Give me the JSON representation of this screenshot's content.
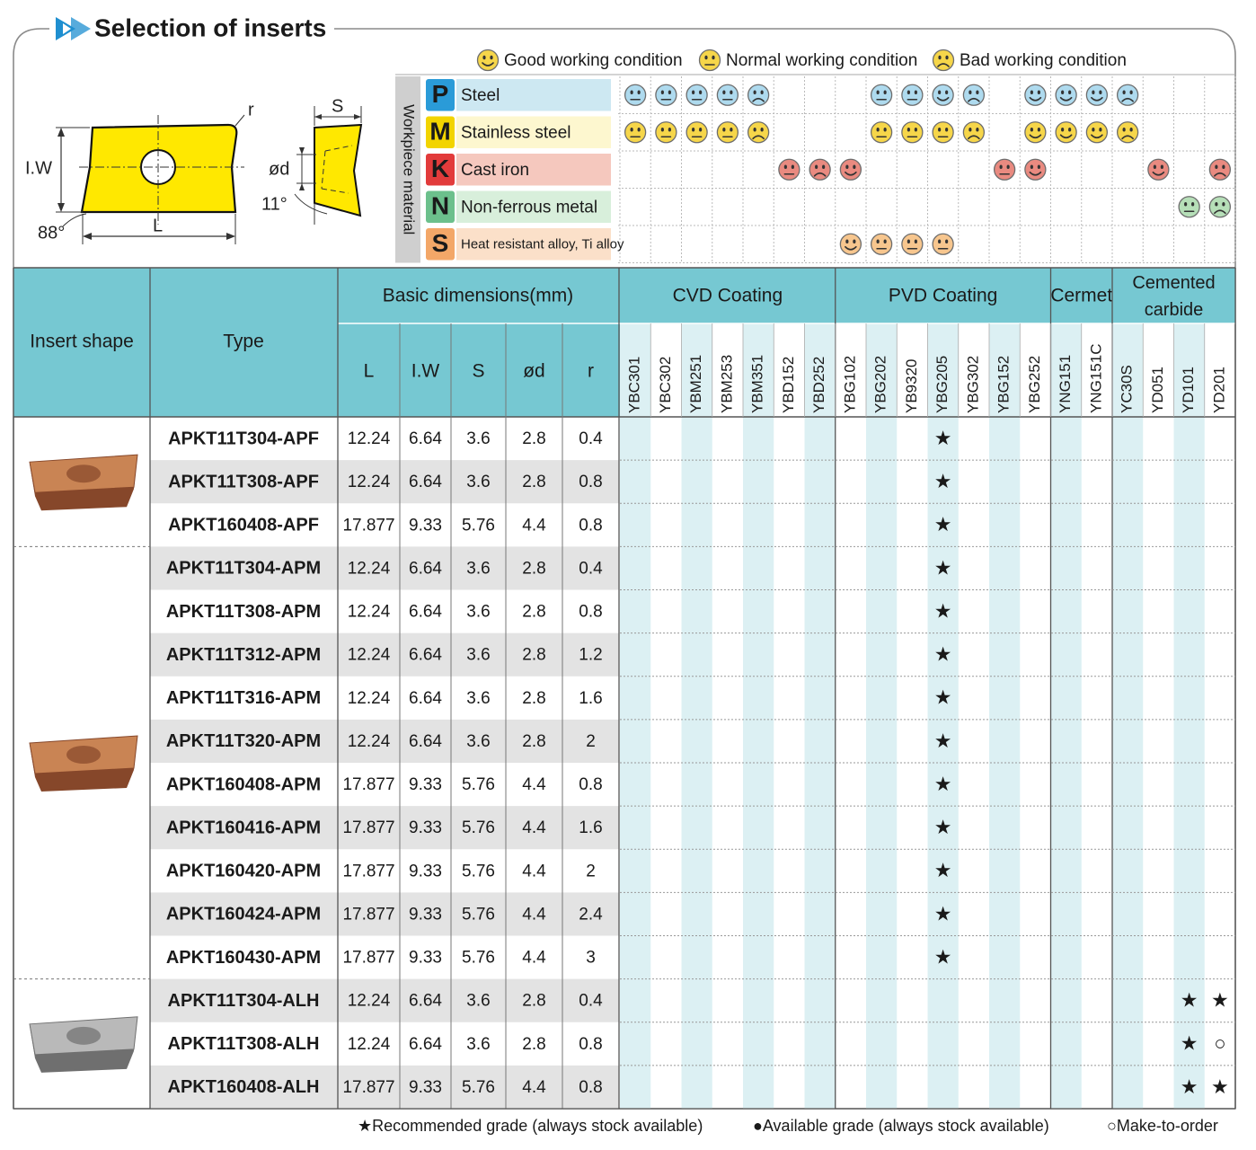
{
  "title": "Selection of inserts",
  "diagram": {
    "r": "r",
    "iw": "I.W",
    "l": "L",
    "angle_bottom": "88°",
    "s": "S",
    "d": "ød",
    "angle_side": "11°"
  },
  "conditions": [
    {
      "mood": "good",
      "label": "Good working condition"
    },
    {
      "mood": "normal",
      "label": "Normal working condition"
    },
    {
      "mood": "bad",
      "label": "Bad working condition"
    }
  ],
  "materials": {
    "label": "Workpiece material",
    "rows": [
      {
        "letter": "P",
        "name": "Steel",
        "color": "#2a9bd8",
        "letter_color": "#ffffff",
        "background": "#cde8f2",
        "face_color": "#aedaee",
        "conditions": [
          "normal",
          "normal",
          "normal",
          "normal",
          "bad",
          null,
          null,
          null,
          "normal",
          "normal",
          "good",
          "bad",
          null,
          "good",
          "good",
          "good",
          "bad",
          null,
          null,
          null
        ]
      },
      {
        "letter": "M",
        "name": "Stainless steel",
        "color": "#f2d400",
        "letter_color": "#111111",
        "background": "#fdf7cf",
        "face_color": "#f6d64a",
        "conditions": [
          "normal",
          "normal",
          "normal",
          "normal",
          "bad",
          null,
          null,
          null,
          "normal",
          "normal",
          "normal",
          "bad",
          null,
          "good",
          "good",
          "good",
          "bad",
          null,
          null,
          null
        ]
      },
      {
        "letter": "K",
        "name": "Cast iron",
        "color": "#e23b3b",
        "letter_color": "#ffffff",
        "background": "#f5c8be",
        "face_color": "#e98a80",
        "conditions": [
          null,
          null,
          null,
          null,
          null,
          "normal",
          "bad",
          "good",
          null,
          null,
          null,
          null,
          "normal",
          "good",
          null,
          null,
          null,
          "good",
          null,
          "bad"
        ]
      },
      {
        "letter": "N",
        "name": "Non-ferrous metal",
        "color": "#6cc08c",
        "letter_color": "#ffffff",
        "background": "#d8efdb",
        "face_color": "#b6dfb8",
        "conditions": [
          null,
          null,
          null,
          null,
          null,
          null,
          null,
          null,
          null,
          null,
          null,
          null,
          null,
          null,
          null,
          null,
          null,
          null,
          "normal",
          "bad"
        ]
      },
      {
        "letter": "S",
        "name": "Heat resistant alloy, Ti alloy",
        "color": "#f3a768",
        "letter_color": "#ffffff",
        "background": "#fbe0c9",
        "face_color": "#f7c68e",
        "conditions": [
          null,
          null,
          null,
          null,
          null,
          null,
          null,
          "good",
          "normal",
          "normal",
          "normal",
          null,
          null,
          null,
          null,
          null,
          null,
          null,
          null,
          null
        ]
      }
    ]
  },
  "table": {
    "headers": {
      "insert_shape": "Insert shape",
      "type": "Type",
      "basic_dimensions": "Basic dimensions(mm)",
      "dimensions": [
        "L",
        "I.W",
        "S",
        "ød",
        "r"
      ],
      "groups": [
        {
          "name": "CVD Coating",
          "grades": [
            "YBC301",
            "YBC302",
            "YBM251",
            "YBM253",
            "YBM351",
            "YBD152",
            "YBD252"
          ]
        },
        {
          "name": "PVD Coating",
          "grades": [
            "YBG102",
            "YBG202",
            "YB9320",
            "YBG205",
            "YBG302",
            "YBG152",
            "YBG252"
          ]
        },
        {
          "name": "Cermet",
          "grades": [
            "YNG151",
            "YNG151C"
          ]
        },
        {
          "name": "Cemented carbide",
          "grades": [
            "YC30S",
            "YD051",
            "YD101",
            "YD201"
          ]
        }
      ]
    },
    "groups": [
      {
        "color": "#c98454",
        "shade_color": "#86472a",
        "rows": [
          {
            "type": "APKT11T304-APF",
            "dims": [
              12.24,
              6.64,
              3.6,
              2.8,
              0.4
            ],
            "marks": {
              "YBG205": "★"
            }
          },
          {
            "type": "APKT11T308-APF",
            "dims": [
              12.24,
              6.64,
              3.6,
              2.8,
              0.8
            ],
            "marks": {
              "YBG205": "★"
            }
          },
          {
            "type": "APKT160408-APF",
            "dims": [
              17.877,
              9.33,
              5.76,
              4.4,
              0.8
            ],
            "marks": {
              "YBG205": "★"
            }
          }
        ]
      },
      {
        "color": "#c98454",
        "shade_color": "#86472a",
        "rows": [
          {
            "type": "APKT11T304-APM",
            "dims": [
              12.24,
              6.64,
              3.6,
              2.8,
              0.4
            ],
            "marks": {
              "YBG205": "★"
            }
          },
          {
            "type": "APKT11T308-APM",
            "dims": [
              12.24,
              6.64,
              3.6,
              2.8,
              0.8
            ],
            "marks": {
              "YBG205": "★"
            }
          },
          {
            "type": "APKT11T312-APM",
            "dims": [
              12.24,
              6.64,
              3.6,
              2.8,
              1.2
            ],
            "marks": {
              "YBG205": "★"
            }
          },
          {
            "type": "APKT11T316-APM",
            "dims": [
              12.24,
              6.64,
              3.6,
              2.8,
              1.6
            ],
            "marks": {
              "YBG205": "★"
            }
          },
          {
            "type": "APKT11T320-APM",
            "dims": [
              12.24,
              6.64,
              3.6,
              2.8,
              2
            ],
            "marks": {
              "YBG205": "★"
            }
          },
          {
            "type": "APKT160408-APM",
            "dims": [
              17.877,
              9.33,
              5.76,
              4.4,
              0.8
            ],
            "marks": {
              "YBG205": "★"
            }
          },
          {
            "type": "APKT160416-APM",
            "dims": [
              17.877,
              9.33,
              5.76,
              4.4,
              1.6
            ],
            "marks": {
              "YBG205": "★"
            }
          },
          {
            "type": "APKT160420-APM",
            "dims": [
              17.877,
              9.33,
              5.76,
              4.4,
              2
            ],
            "marks": {
              "YBG205": "★"
            }
          },
          {
            "type": "APKT160424-APM",
            "dims": [
              17.877,
              9.33,
              5.76,
              4.4,
              2.4
            ],
            "marks": {
              "YBG205": "★"
            }
          },
          {
            "type": "APKT160430-APM",
            "dims": [
              17.877,
              9.33,
              5.76,
              4.4,
              3
            ],
            "marks": {
              "YBG205": "★"
            }
          }
        ]
      },
      {
        "color": "#b9b9b9",
        "shade_color": "#6f6f6f",
        "rows": [
          {
            "type": "APKT11T304-ALH",
            "dims": [
              12.24,
              6.64,
              3.6,
              2.8,
              0.4
            ],
            "marks": {
              "YD101": "★",
              "YD201": "★"
            }
          },
          {
            "type": "APKT11T308-ALH",
            "dims": [
              12.24,
              6.64,
              3.6,
              2.8,
              0.8
            ],
            "marks": {
              "YD101": "★",
              "YD201": "○"
            }
          },
          {
            "type": "APKT160408-ALH",
            "dims": [
              17.877,
              9.33,
              5.76,
              4.4,
              0.8
            ],
            "marks": {
              "YD101": "★",
              "YD201": "★"
            }
          }
        ]
      }
    ]
  },
  "legend": [
    "★Recommended grade (always stock available)",
    "●Available grade (always stock available)",
    "○Make-to-order"
  ]
}
